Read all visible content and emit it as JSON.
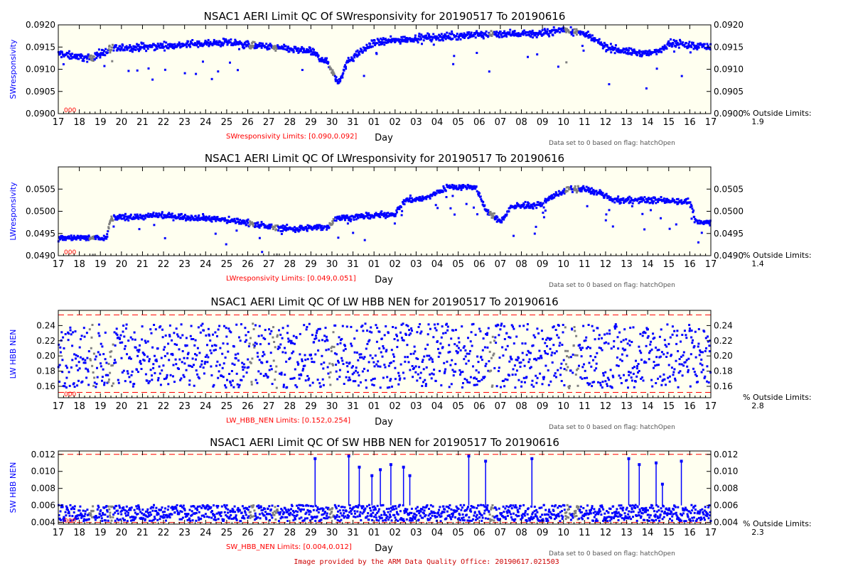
{
  "footer": "Image provided by the ARM Data Quality Office: 20190617.021503",
  "colors": {
    "background": "#fffff0",
    "data": "#0000ff",
    "flagged": "#808080",
    "limit": "#ff0000",
    "axis": "#000000"
  },
  "chart_data": [
    {
      "type": "scatter",
      "title": "NSAC1 AERI Limit QC Of SWresponsivity for 20190517 To 20190616",
      "ylabel": "SWresponsivity",
      "xlabel": "Day",
      "limits_label": "SWresponsivity Limits: [0.090,0.092]",
      "flag_note": "Data set to 0 based on flag: hatchOpen",
      "outside_label": "% Outside Limits:",
      "outside_value": "1.9",
      "zero_label": "000",
      "ylim": [
        0.09,
        0.092
      ],
      "yticks": [
        "0.0900",
        "0.0905",
        "0.0910",
        "0.0915",
        "0.0920"
      ],
      "yticks_right": [
        "0.0900",
        "0.0905",
        "0.0910",
        "0.0915",
        "0.0920"
      ],
      "limits": [
        0.09,
        0.092
      ],
      "x_tick_labels": [
        "17",
        "18",
        "19",
        "20",
        "21",
        "22",
        "23",
        "24",
        "25",
        "26",
        "27",
        "28",
        "29",
        "30",
        "31",
        "01",
        "02",
        "03",
        "04",
        "05",
        "06",
        "07",
        "08",
        "09",
        "10",
        "11",
        "12",
        "13",
        "14",
        "15",
        "16",
        "17"
      ],
      "profile": [
        [
          0,
          0.09135
        ],
        [
          1.5,
          0.09125
        ],
        [
          2.5,
          0.09145
        ],
        [
          4,
          0.0915
        ],
        [
          6,
          0.09155
        ],
        [
          8,
          0.0916
        ],
        [
          10,
          0.0915
        ],
        [
          12,
          0.0914
        ],
        [
          12.8,
          0.09115
        ],
        [
          13.3,
          0.0907
        ],
        [
          13.8,
          0.0912
        ],
        [
          15,
          0.0916
        ],
        [
          17,
          0.0917
        ],
        [
          19,
          0.09175
        ],
        [
          21,
          0.0918
        ],
        [
          23,
          0.0918
        ],
        [
          24,
          0.0919
        ],
        [
          25,
          0.0918
        ],
        [
          26,
          0.0915
        ],
        [
          27,
          0.0914
        ],
        [
          28,
          0.09135
        ],
        [
          28.5,
          0.0914
        ],
        [
          29,
          0.0916
        ],
        [
          31,
          0.0915
        ]
      ],
      "spread": 0.0004,
      "noise": 0.00012,
      "outlier_rate": 0.03
    },
    {
      "type": "scatter",
      "title": "NSAC1 AERI Limit QC Of LWresponsivity for 20190517 To 20190616",
      "ylabel": "LWresponsivity",
      "xlabel": "Day",
      "limits_label": "LWresponsivity Limits: [0.049,0.051]",
      "flag_note": "Data set to 0 based on flag: hatchOpen",
      "outside_label": "% Outside Limits:",
      "outside_value": "1.4",
      "zero_label": "000",
      "ylim": [
        0.049,
        0.051
      ],
      "yticks": [
        "0.0490",
        "0.0495",
        "0.0500",
        "0.0505"
      ],
      "yticks_right": [
        "0.0490",
        "0.0495",
        "0.0500",
        "0.0505"
      ],
      "limits": [
        0.049,
        0.051
      ],
      "x_tick_labels": [
        "17",
        "18",
        "19",
        "20",
        "21",
        "22",
        "23",
        "24",
        "25",
        "26",
        "27",
        "28",
        "29",
        "30",
        "31",
        "01",
        "02",
        "03",
        "04",
        "05",
        "06",
        "07",
        "08",
        "09",
        "10",
        "11",
        "12",
        "13",
        "14",
        "15",
        "16",
        "17"
      ],
      "profile": [
        [
          0,
          0.0494
        ],
        [
          2.3,
          0.0494
        ],
        [
          2.5,
          0.04985
        ],
        [
          5,
          0.0499
        ],
        [
          7,
          0.04985
        ],
        [
          9,
          0.04975
        ],
        [
          10,
          0.04965
        ],
        [
          11.2,
          0.0496
        ],
        [
          12.8,
          0.04965
        ],
        [
          13.2,
          0.04985
        ],
        [
          15,
          0.0499
        ],
        [
          16,
          0.04995
        ],
        [
          16.5,
          0.05025
        ],
        [
          17.5,
          0.0503
        ],
        [
          18.5,
          0.05055
        ],
        [
          19.8,
          0.05055
        ],
        [
          20.3,
          0.05005
        ],
        [
          21,
          0.04975
        ],
        [
          21.5,
          0.0501
        ],
        [
          23,
          0.05015
        ],
        [
          23.5,
          0.05035
        ],
        [
          24.3,
          0.0505
        ],
        [
          25,
          0.0505
        ],
        [
          25.8,
          0.0504
        ],
        [
          26.3,
          0.05025
        ],
        [
          29,
          0.05025
        ],
        [
          30,
          0.0502
        ],
        [
          30.3,
          0.04975
        ],
        [
          31,
          0.04975
        ]
      ],
      "spread": 0.0003,
      "noise": 0.0001,
      "outlier_rate": 0.03
    },
    {
      "type": "scatter",
      "title": "NSAC1 AERI Limit QC Of LW HBB NEN for 20190517 To 20190616",
      "ylabel": "LW HBB NEN",
      "xlabel": "Day",
      "limits_label": "LW_HBB_NEN Limits: [0.152,0.254]",
      "flag_note": "Data set to 0 based on flag: hatchOpen",
      "outside_label": "% Outside Limits:",
      "outside_value": "2.8",
      "zero_label": "000",
      "ylim": [
        0.145,
        0.26
      ],
      "yticks": [
        "0.16",
        "0.18",
        "0.20",
        "0.22",
        "0.24"
      ],
      "yticks_right": [
        "0.16",
        "0.18",
        "0.20",
        "0.22",
        "0.24"
      ],
      "limits": [
        0.152,
        0.254
      ],
      "x_tick_labels": [
        "17",
        "18",
        "19",
        "20",
        "21",
        "22",
        "23",
        "24",
        "25",
        "26",
        "27",
        "28",
        "29",
        "30",
        "31",
        "01",
        "02",
        "03",
        "04",
        "05",
        "06",
        "07",
        "08",
        "09",
        "10",
        "11",
        "12",
        "13",
        "14",
        "15",
        "16",
        "17"
      ],
      "profile": [
        [
          0,
          0.2
        ],
        [
          31,
          0.2
        ]
      ],
      "spread": 0.085,
      "noise": 0.0,
      "outlier_rate": 0.0
    },
    {
      "type": "scatter",
      "title": "NSAC1 AERI Limit QC Of SW HBB NEN for 20190517 To 20190616",
      "ylabel": "SW HBB NEN",
      "xlabel": "Day",
      "limits_label": "SW_HBB_NEN Limits: [0.004,0.012]",
      "flag_note": "Data set to 0 based on flag: hatchOpen",
      "outside_label": "% Outside Limits:",
      "outside_value": "2.3",
      "zero_label": "000",
      "ylim": [
        0.0038,
        0.0124
      ],
      "yticks": [
        "0.004",
        "0.006",
        "0.008",
        "0.010",
        "0.012"
      ],
      "yticks_right": [
        "0.004",
        "0.006",
        "0.008",
        "0.010",
        "0.012"
      ],
      "limits": [
        0.004,
        0.012
      ],
      "x_tick_labels": [
        "17",
        "18",
        "19",
        "20",
        "21",
        "22",
        "23",
        "24",
        "25",
        "26",
        "27",
        "28",
        "29",
        "30",
        "31",
        "01",
        "02",
        "03",
        "04",
        "05",
        "06",
        "07",
        "08",
        "09",
        "10",
        "11",
        "12",
        "13",
        "14",
        "15",
        "16",
        "17"
      ],
      "profile": [
        [
          0,
          0.0051
        ],
        [
          31,
          0.0051
        ]
      ],
      "spread": 0.0019,
      "noise": 0.0,
      "outlier_rate": 0.0,
      "spikes": [
        [
          12.2,
          0.0115
        ],
        [
          13.8,
          0.0118
        ],
        [
          14.3,
          0.0105
        ],
        [
          14.9,
          0.0095
        ],
        [
          15.3,
          0.0102
        ],
        [
          15.8,
          0.0108
        ],
        [
          16.4,
          0.0105
        ],
        [
          16.7,
          0.0095
        ],
        [
          19.5,
          0.0118
        ],
        [
          20.3,
          0.0112
        ],
        [
          22.5,
          0.0115
        ],
        [
          27.1,
          0.0115
        ],
        [
          27.6,
          0.0108
        ],
        [
          28.4,
          0.011
        ],
        [
          28.7,
          0.0085
        ],
        [
          29.6,
          0.0112
        ]
      ]
    }
  ]
}
